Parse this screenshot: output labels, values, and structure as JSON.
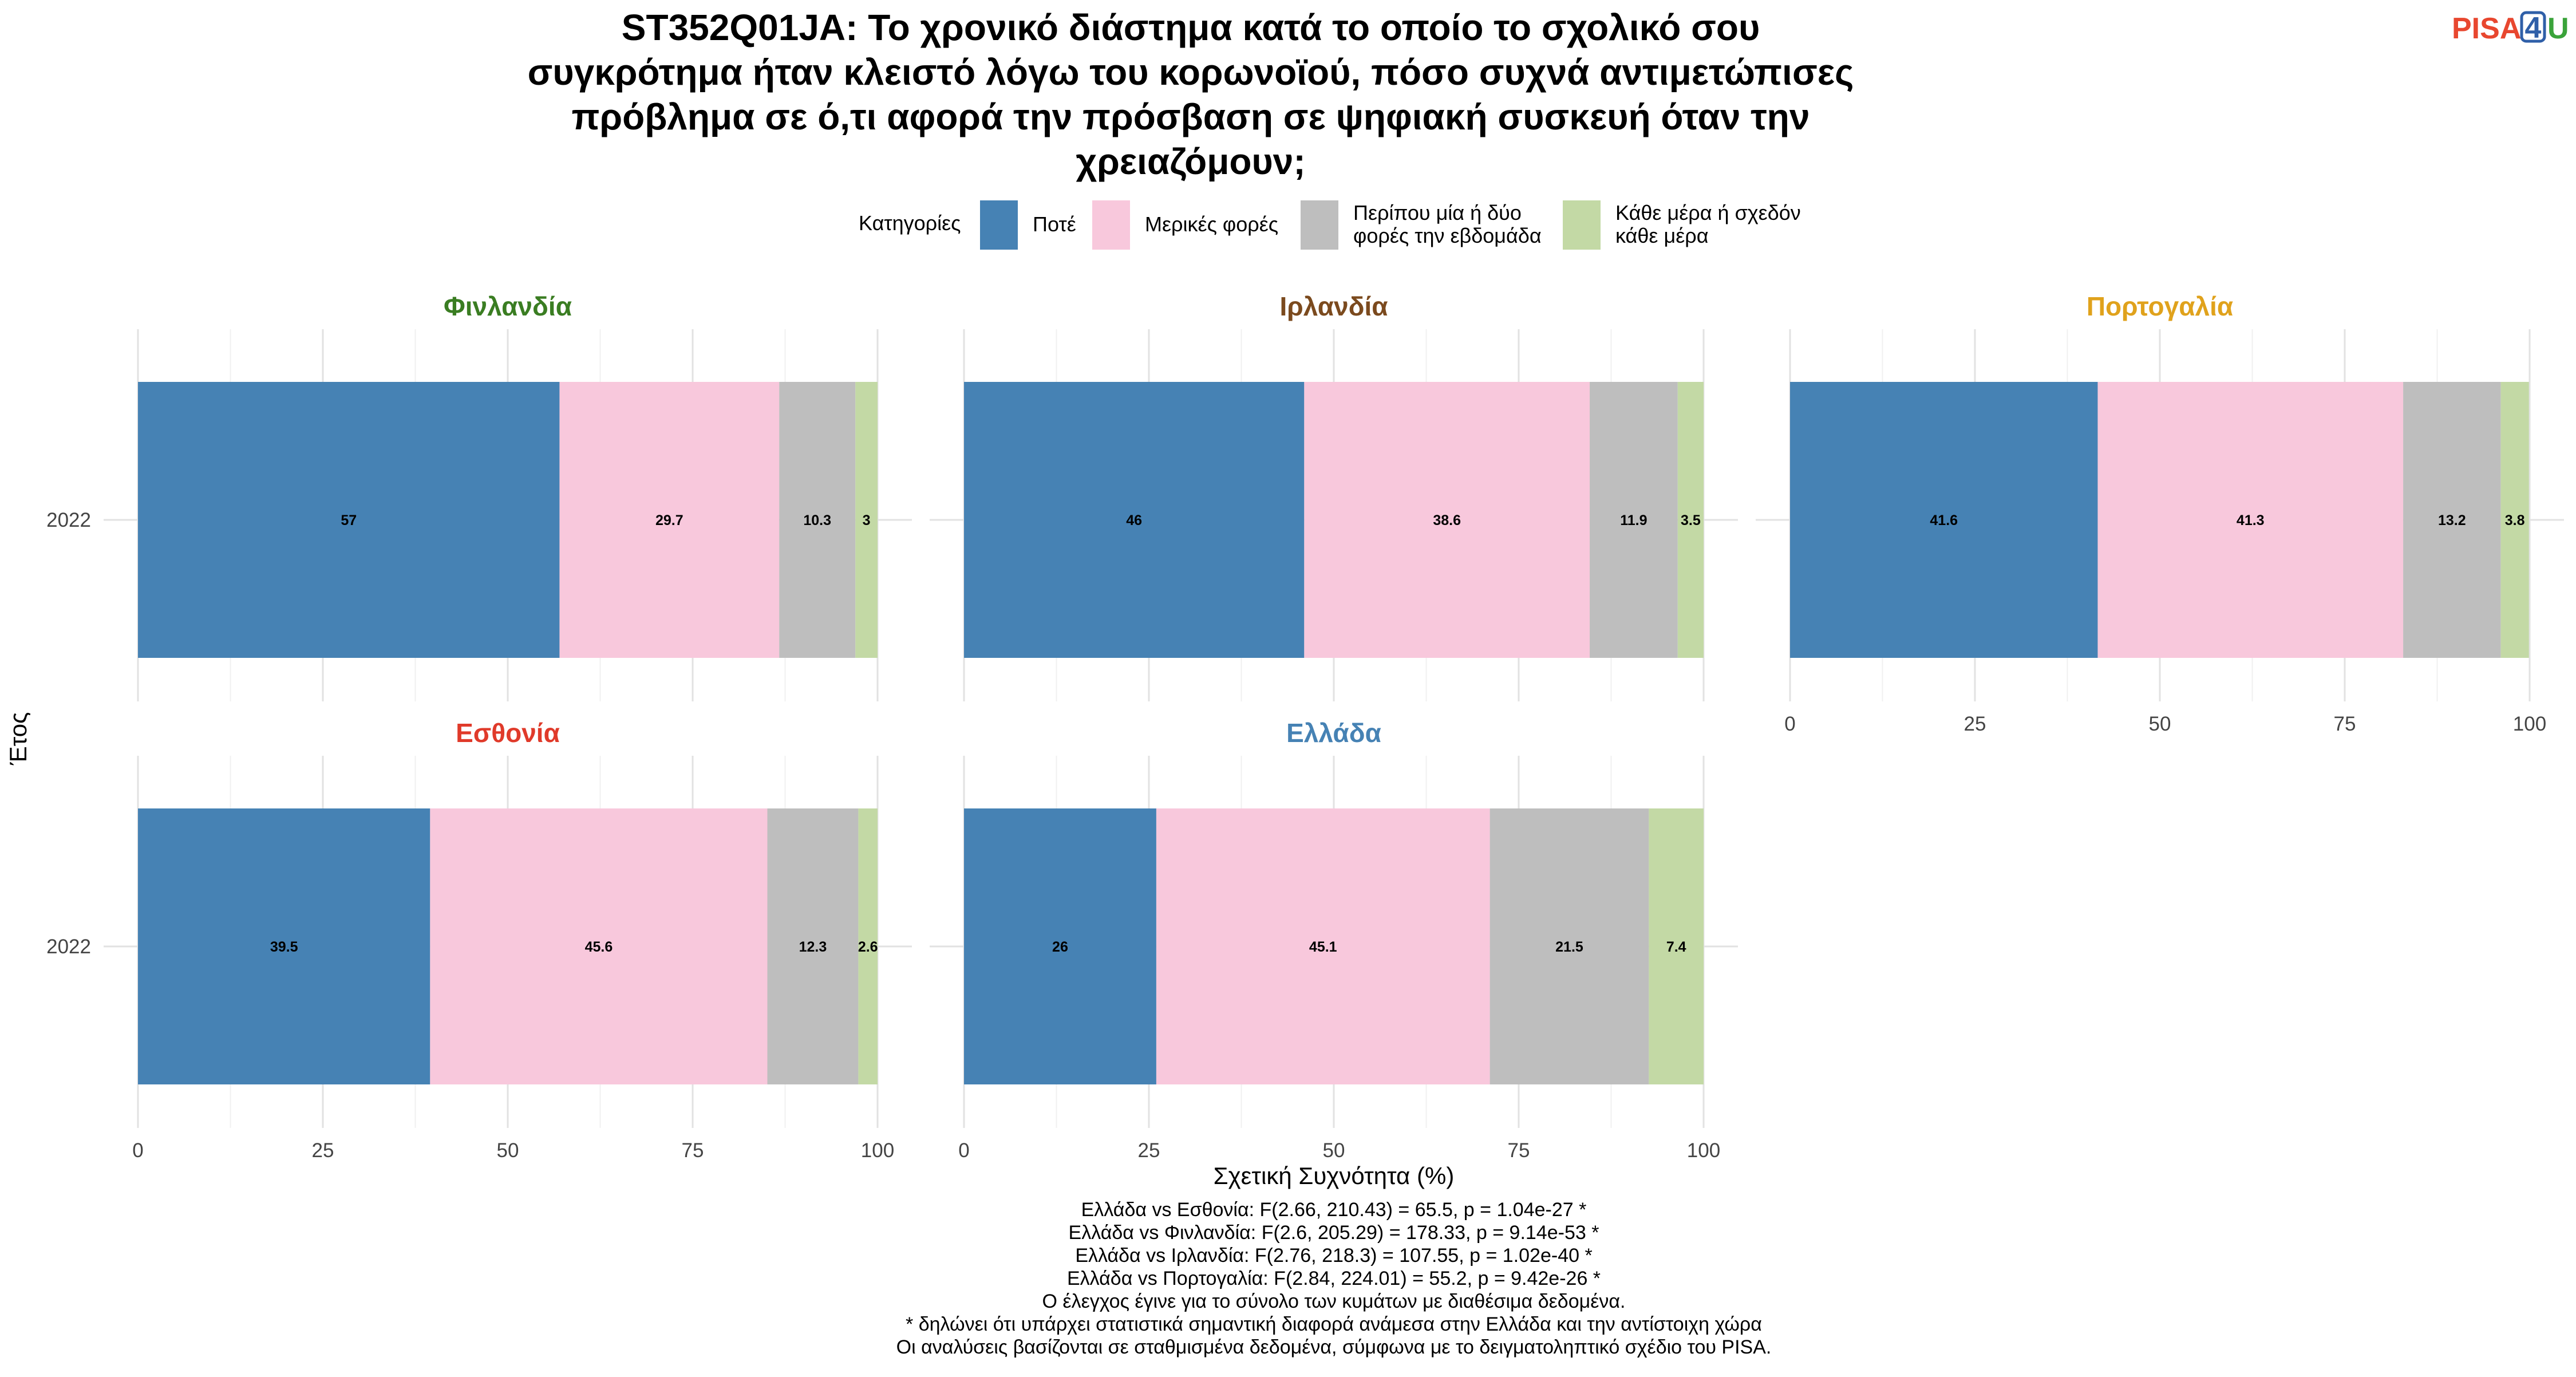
{
  "title_lines": [
    "ST352Q01JA: Το χρονικό διάστημα κατά το οποίο το σχολικό σου",
    "συγκρότημα ήταν κλειστό λόγω του κορωνοϊού, πόσο συχνά αντιμετώπισες",
    "πρόβλημα σε ό,τι αφορά την πρόσβαση σε ψηφιακή συσκευή όταν την",
    "χρειαζόμουν;"
  ],
  "logo": {
    "part1": "PISA",
    "part2": "4",
    "part3": "U"
  },
  "legend": {
    "title": "Κατηγορίες",
    "items": [
      {
        "lines": [
          "Ποτέ"
        ],
        "color": "#4682b4"
      },
      {
        "lines": [
          "Μερικές φορές"
        ],
        "color": "#f8c8dc"
      },
      {
        "lines": [
          "Περίπου μία ή δύο",
          "φορές την εβδομάδα"
        ],
        "color": "#bebebe"
      },
      {
        "lines": [
          "Κάθε μέρα ή σχεδόν",
          "κάθε μέρα"
        ],
        "color": "#c3d9a5"
      }
    ]
  },
  "chart_data": {
    "type": "bar",
    "orientation": "horizontal-stacked",
    "categories": [
      "Ποτέ",
      "Μερικές φορές",
      "Περίπου μία ή δύο φορές την εβδομάδα",
      "Κάθε μέρα ή σχεδόν κάθε μέρα"
    ],
    "xlabel": "Σχετική Συχνότητα (%)",
    "ylabel": "Έτος",
    "xlim": [
      0,
      100
    ],
    "xticks": [
      0,
      25,
      50,
      75,
      100
    ],
    "panels": [
      {
        "country": "Φινλανδία",
        "color": "#3a7d22",
        "year": "2022",
        "values": [
          57,
          29.7,
          10.3,
          3
        ],
        "labels": [
          "57",
          "29.7",
          "10.3",
          "3"
        ]
      },
      {
        "country": "Ιρλανδία",
        "color": "#7b4a1e",
        "year": "2022",
        "values": [
          46,
          38.6,
          11.9,
          3.5
        ],
        "labels": [
          "46",
          "38.6",
          "11.9",
          "3.5"
        ]
      },
      {
        "country": "Πορτογαλία",
        "color": "#e0a21c",
        "year": "2022",
        "values": [
          41.6,
          41.3,
          13.2,
          3.8
        ],
        "labels": [
          "41.6",
          "41.3",
          "13.2",
          "3.8"
        ]
      },
      {
        "country": "Εσθονία",
        "color": "#e03a2a",
        "year": "2022",
        "values": [
          39.5,
          45.6,
          12.3,
          2.6
        ],
        "labels": [
          "39.5",
          "45.6",
          "12.3",
          "2.6"
        ]
      },
      {
        "country": "Ελλάδα",
        "color": "#4682b4",
        "year": "2022",
        "values": [
          26,
          45.1,
          21.5,
          7.4
        ],
        "labels": [
          "26",
          "45.1",
          "21.5",
          "7.4"
        ]
      }
    ]
  },
  "caption_lines": [
    "Ελλάδα vs Εσθονία: F(2.66, 210.43) = 65.5, p = 1.04e-27 *",
    "Ελλάδα vs Φινλανδία: F(2.6, 205.29) = 178.33, p = 9.14e-53 *",
    "Ελλάδα vs Ιρλανδία: F(2.76, 218.3) = 107.55, p = 1.02e-40 *",
    "Ελλάδα vs Πορτογαλία: F(2.84, 224.01) = 55.2, p = 9.42e-26 *",
    "Ο έλεγχος έγινε για το σύνολο των κυμάτων με διαθέσιμα δεδομένα.",
    "* δηλώνει ότι υπάρχει στατιστικά σημαντική διαφορά ανάμεσα στην Ελλάδα και την αντίστοιχη χώρα",
    "Οι αναλύσεις βασίζονται σε σταθμισμένα δεδομένα, σύμφωνα με το δειγματοληπτικό σχέδιο του PISA."
  ]
}
